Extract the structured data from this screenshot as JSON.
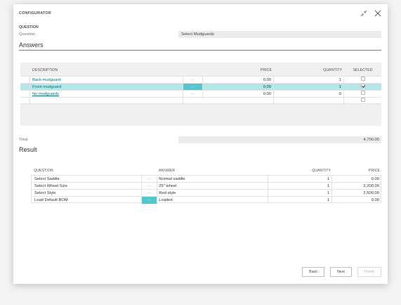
{
  "dialog": {
    "caption": "CONFIGURATOR"
  },
  "question": {
    "section_label": "QUESTION",
    "field_label": "Question",
    "field_value": "Select Mudguards"
  },
  "answers": {
    "heading": "Answers",
    "columns": [
      "DESCRIPTION",
      "PRICE",
      "QUANTITY",
      "SELECTED"
    ],
    "ellipsis": "···",
    "rows": [
      {
        "description": "Back mudguard",
        "price": "0.00",
        "quantity": "1",
        "selected": false
      },
      {
        "description": "Front mudguard",
        "price": "0.00",
        "quantity": "1",
        "selected": true
      },
      {
        "description": "No mudguards",
        "price": "0.00",
        "quantity": "0",
        "selected": false
      }
    ]
  },
  "total": {
    "label": "Total",
    "value": "4,700.00"
  },
  "result": {
    "heading": "Result",
    "columns": [
      "QUESTION",
      "ANSWER",
      "QUANTITY",
      "PRICE"
    ],
    "ellipsis": "···",
    "rows": [
      {
        "question": "Select Saddle",
        "answer": "Normal saddle",
        "quantity": "1",
        "price": "0.00"
      },
      {
        "question": "Select Wheel Size",
        "answer": "25\" wheel",
        "quantity": "1",
        "price": "2,200.00"
      },
      {
        "question": "Select Style",
        "answer": "Red style",
        "quantity": "1",
        "price": "2,500.00"
      },
      {
        "question": "Load Default BOM",
        "answer": "Loaded",
        "quantity": "1",
        "price": "0.00"
      }
    ]
  },
  "buttons": {
    "back": "Back",
    "next": "Next",
    "finish": "Finish"
  },
  "icons": {
    "collapse": "collapse-icon",
    "close": "close-icon"
  },
  "colors": {
    "selected_row": "#b0e8ea",
    "accent": "#4fc8ce",
    "link": "#0f6f73"
  }
}
